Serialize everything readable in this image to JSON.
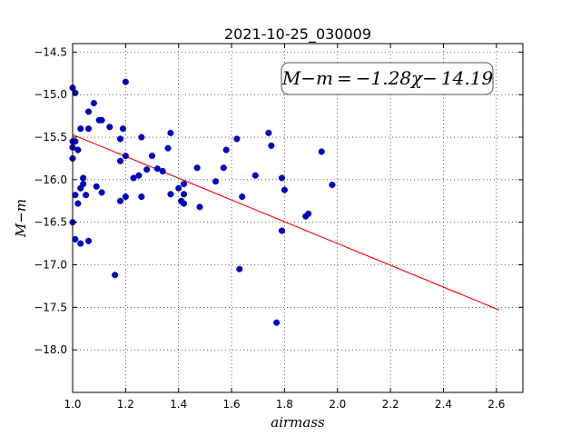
{
  "chart_data": {
    "type": "scatter",
    "title": "2021-10-25_030009",
    "xlabel": "airmass",
    "ylabel": "M−m",
    "xlim": [
      1.0,
      2.7
    ],
    "ylim": [
      -18.5,
      -14.4
    ],
    "y_inverted": true,
    "grid": true,
    "x_ticks": [
      1.0,
      1.2,
      1.4,
      1.6,
      1.8,
      2.0,
      2.2,
      2.4,
      2.6
    ],
    "x_tick_labels": [
      "1.0",
      "1.2",
      "1.4",
      "1.6",
      "1.8",
      "2.0",
      "2.2",
      "2.4",
      "2.6"
    ],
    "y_ticks": [
      -14.5,
      -15.0,
      -15.5,
      -16.0,
      -16.5,
      -17.0,
      -17.5,
      -18.0
    ],
    "y_tick_labels": [
      "−14.5",
      "−15.0",
      "−15.5",
      "−16.0",
      "−16.5",
      "−17.0",
      "−17.5",
      "−18.0"
    ],
    "annotation": "M−m = −1.28χ− 14.19",
    "fit": {
      "slope": -1.28,
      "intercept": -14.19,
      "x_range": [
        1.0,
        2.61
      ],
      "color": "#ff0000"
    },
    "point_color": "#0000cc",
    "points": [
      [
        1.0,
        -14.92
      ],
      [
        1.01,
        -14.98
      ],
      [
        1.0,
        -15.55
      ],
      [
        1.0,
        -15.62
      ],
      [
        1.0,
        -15.75
      ],
      [
        1.0,
        -16.5
      ],
      [
        1.01,
        -15.55
      ],
      [
        1.02,
        -15.65
      ],
      [
        1.03,
        -15.4
      ],
      [
        1.01,
        -16.18
      ],
      [
        1.02,
        -16.28
      ],
      [
        1.01,
        -16.7
      ],
      [
        1.03,
        -16.75
      ],
      [
        1.03,
        -16.1
      ],
      [
        1.04,
        -16.05
      ],
      [
        1.04,
        -15.98
      ],
      [
        1.05,
        -16.18
      ],
      [
        1.06,
        -16.72
      ],
      [
        1.06,
        -15.4
      ],
      [
        1.06,
        -15.2
      ],
      [
        1.08,
        -15.1
      ],
      [
        1.09,
        -16.08
      ],
      [
        1.1,
        -15.3
      ],
      [
        1.11,
        -16.15
      ],
      [
        1.11,
        -15.3
      ],
      [
        1.14,
        -15.38
      ],
      [
        1.16,
        -17.12
      ],
      [
        1.18,
        -15.78
      ],
      [
        1.18,
        -15.52
      ],
      [
        1.18,
        -16.25
      ],
      [
        1.19,
        -15.4
      ],
      [
        1.2,
        -14.85
      ],
      [
        1.2,
        -15.72
      ],
      [
        1.2,
        -16.2
      ],
      [
        1.23,
        -15.98
      ],
      [
        1.25,
        -15.95
      ],
      [
        1.26,
        -15.5
      ],
      [
        1.26,
        -16.2
      ],
      [
        1.28,
        -15.88
      ],
      [
        1.3,
        -15.72
      ],
      [
        1.32,
        -15.87
      ],
      [
        1.34,
        -15.9
      ],
      [
        1.36,
        -15.63
      ],
      [
        1.37,
        -15.45
      ],
      [
        1.37,
        -16.17
      ],
      [
        1.4,
        -16.1
      ],
      [
        1.41,
        -16.25
      ],
      [
        1.42,
        -16.28
      ],
      [
        1.42,
        -16.17
      ],
      [
        1.42,
        -16.05
      ],
      [
        1.47,
        -15.86
      ],
      [
        1.48,
        -16.32
      ],
      [
        1.54,
        -16.02
      ],
      [
        1.57,
        -15.86
      ],
      [
        1.58,
        -15.65
      ],
      [
        1.62,
        -15.52
      ],
      [
        1.63,
        -17.05
      ],
      [
        1.64,
        -16.2
      ],
      [
        1.69,
        -15.95
      ],
      [
        1.74,
        -15.45
      ],
      [
        1.75,
        -15.6
      ],
      [
        1.77,
        -17.68
      ],
      [
        1.79,
        -15.98
      ],
      [
        1.79,
        -16.6
      ],
      [
        1.8,
        -16.12
      ],
      [
        1.88,
        -16.43
      ],
      [
        1.89,
        -16.4
      ],
      [
        1.94,
        -15.67
      ],
      [
        1.98,
        -16.06
      ]
    ]
  }
}
